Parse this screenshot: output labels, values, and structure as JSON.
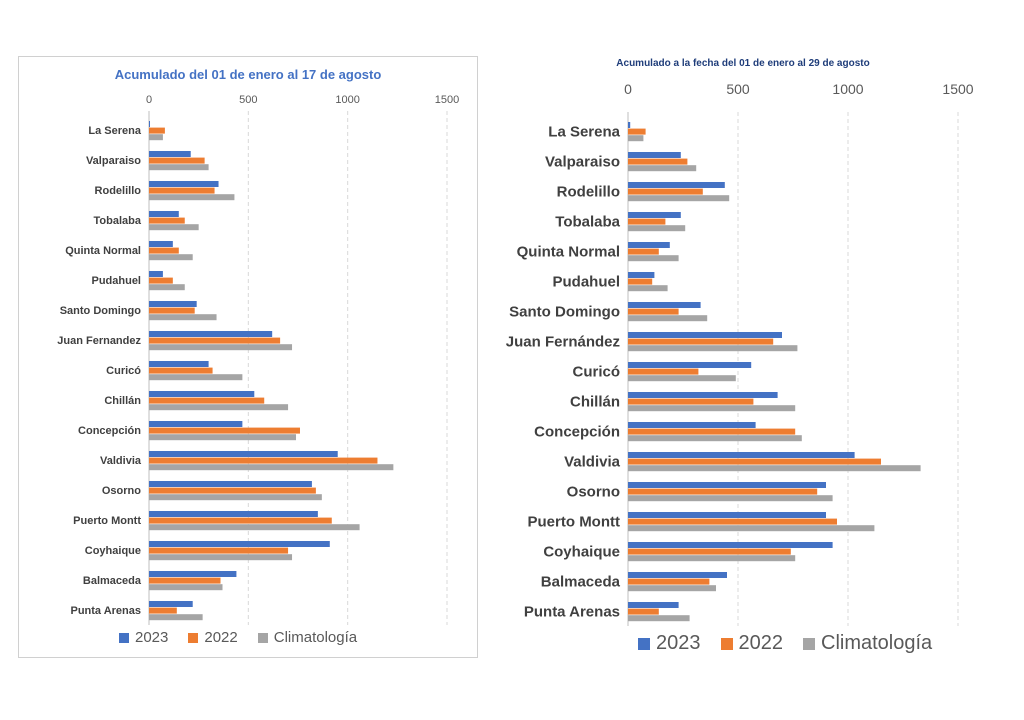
{
  "colors": {
    "s2023": "#4472c4",
    "s2022": "#ed7d31",
    "clim": "#a5a5a5",
    "grid": "#d9d9d9",
    "axis": "#404040"
  },
  "chart_data": [
    {
      "type": "bar",
      "orientation": "horizontal",
      "title": "Acumulado del 01 de enero al 17 de agosto",
      "xlim": [
        0,
        1500
      ],
      "xticks": [
        "0",
        "500",
        "1000",
        "1500"
      ],
      "grid": "vertical dashed",
      "legend_position": "bottom",
      "categories": [
        "La Serena",
        "Valparaiso",
        "Rodelillo",
        "Tobalaba",
        "Quinta Normal",
        "Pudahuel",
        "Santo Domingo",
        "Juan Fernandez",
        "Curicó",
        "Chillán",
        "Concepción",
        "Valdivia",
        "Osorno",
        "Puerto Montt",
        "Coyhaique",
        "Balmaceda",
        "Punta Arenas"
      ],
      "series": [
        {
          "name": "2023",
          "values": [
            5,
            210,
            350,
            150,
            120,
            70,
            240,
            620,
            300,
            530,
            470,
            950,
            820,
            850,
            910,
            440,
            220
          ]
        },
        {
          "name": "2022",
          "values": [
            80,
            280,
            330,
            180,
            150,
            120,
            230,
            660,
            320,
            580,
            760,
            1150,
            840,
            920,
            700,
            360,
            140
          ]
        },
        {
          "name": "Climatología",
          "values": [
            70,
            300,
            430,
            250,
            220,
            180,
            340,
            720,
            470,
            700,
            740,
            1230,
            870,
            1060,
            720,
            370,
            270
          ]
        }
      ]
    },
    {
      "type": "bar",
      "orientation": "horizontal",
      "title": "Acumulado a la fecha del 01 de enero al 29 de agosto",
      "xlim": [
        0,
        1500
      ],
      "xticks": [
        "0",
        "500",
        "1000",
        "1500"
      ],
      "grid": "vertical dashed",
      "legend_position": "bottom",
      "categories": [
        "La Serena",
        "Valparaiso",
        "Rodelillo",
        "Tobalaba",
        "Quinta  Normal",
        "Pudahuel",
        "Santo Domingo",
        "Juan Fernández",
        "Curicó",
        "Chillán",
        "Concepción",
        "Valdivia",
        "Osorno",
        "Puerto Montt",
        "Coyhaique",
        "Balmaceda",
        "Punta Arenas"
      ],
      "series": [
        {
          "name": "2023",
          "values": [
            10,
            240,
            440,
            240,
            190,
            120,
            330,
            700,
            560,
            680,
            580,
            1030,
            900,
            900,
            930,
            450,
            230
          ]
        },
        {
          "name": "2022",
          "values": [
            80,
            270,
            340,
            170,
            140,
            110,
            230,
            660,
            320,
            570,
            760,
            1150,
            860,
            950,
            740,
            370,
            140
          ]
        },
        {
          "name": "Climatología",
          "values": [
            70,
            310,
            460,
            260,
            230,
            180,
            360,
            770,
            490,
            760,
            790,
            1330,
            930,
            1120,
            760,
            400,
            280
          ]
        }
      ]
    }
  ]
}
